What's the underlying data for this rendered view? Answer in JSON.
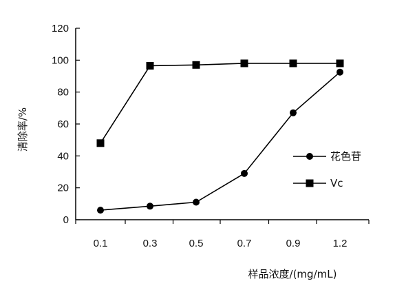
{
  "chart_data": {
    "type": "line",
    "categories": [
      "0.1",
      "0.3",
      "0.5",
      "0.7",
      "0.9",
      "1.2"
    ],
    "series": [
      {
        "name": "花色苷",
        "marker": "circle",
        "values": [
          6,
          8.5,
          11,
          29,
          67,
          92.5
        ]
      },
      {
        "name": "Vc",
        "marker": "square",
        "values": [
          48,
          96.5,
          97,
          98,
          98,
          98
        ]
      }
    ],
    "title": "",
    "xlabel": "样品浓度/(mg/mL)",
    "ylabel": "清除率/%",
    "ylim": [
      0,
      120
    ],
    "yticks": [
      0,
      20,
      40,
      60,
      80,
      100,
      120
    ],
    "grid": false,
    "legend_position": "right",
    "colors": {
      "line": "#000000",
      "background": "#ffffff"
    }
  }
}
